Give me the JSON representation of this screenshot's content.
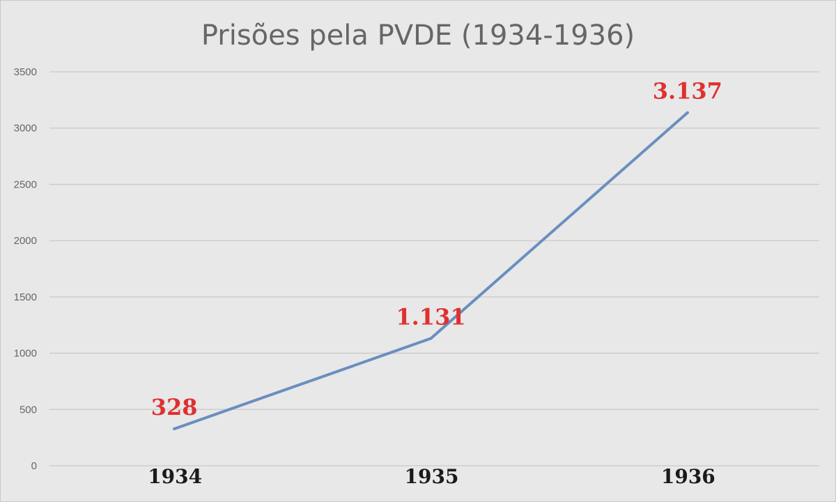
{
  "chart_data": {
    "type": "line",
    "title": "Prisões pela PVDE (1934-1936)",
    "xlabel": "",
    "ylabel": "",
    "categories": [
      "1934",
      "1935",
      "1936"
    ],
    "series": [
      {
        "values": [
          328,
          1131,
          3137
        ],
        "data_labels": [
          "328",
          "1.131",
          "3.137"
        ]
      }
    ],
    "ylim": [
      0,
      3500
    ],
    "yticks": [
      0,
      500,
      1000,
      1500,
      2000,
      2500,
      3000,
      3500
    ],
    "grid": true,
    "legend": "none",
    "colors": {
      "line": "#6a8ebf",
      "data_label": "#e03030",
      "background": "#e8e8e8",
      "grid": "#c9c9c9"
    }
  }
}
